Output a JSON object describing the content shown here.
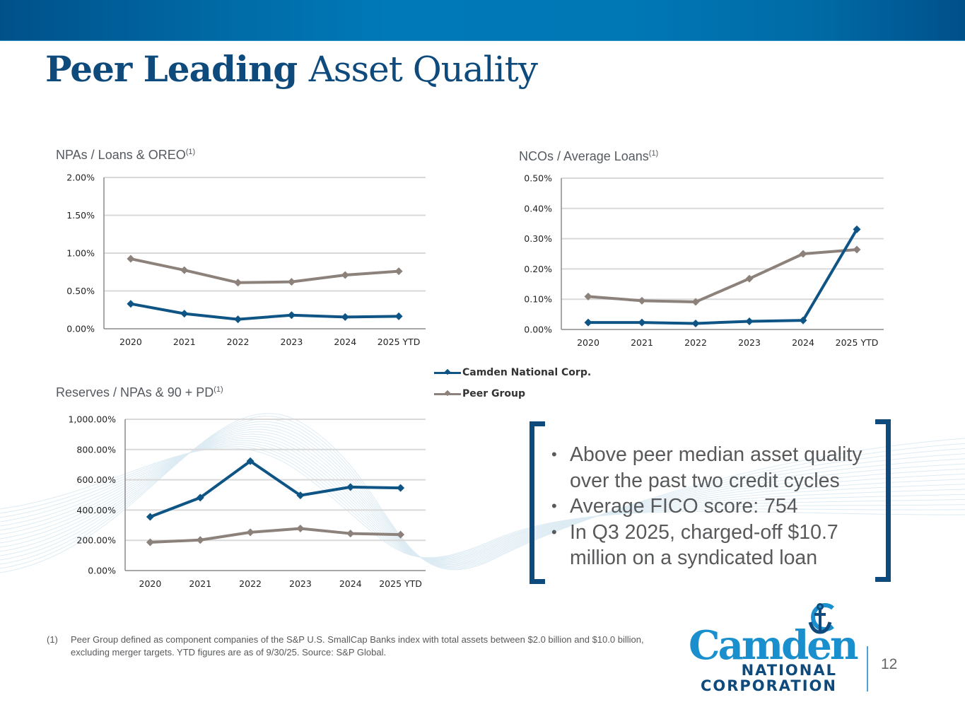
{
  "header": {
    "title_bold": "Peer Leading",
    "title_light": "Asset Quality"
  },
  "colors": {
    "camden": "#0e5485",
    "peer": "#8d827b",
    "brand_dark": "#0e4a7c",
    "brand_light": "#1a8fce",
    "gridline": "#d9d9d9",
    "axis": "#8c8c8c"
  },
  "legend": {
    "items": [
      {
        "label": "Camden National Corp.",
        "color_key": "camden"
      },
      {
        "label": "Peer Group",
        "color_key": "peer"
      }
    ]
  },
  "chart_data": [
    {
      "type": "line",
      "title": "NPAs / Loans & OREO",
      "title_superscript": "(1)",
      "xlabel": "",
      "ylabel": "",
      "categories": [
        "2020",
        "2021",
        "2022",
        "2023",
        "2024",
        "2025 YTD"
      ],
      "yticks": [
        "0.00%",
        "0.50%",
        "1.00%",
        "1.50%",
        "2.00%"
      ],
      "ylim": [
        0,
        2.0
      ],
      "ytick_step": 0.5,
      "grid": true,
      "series": [
        {
          "name": "Camden National Corp.",
          "color_key": "camden",
          "values": [
            0.33,
            0.2,
            0.125,
            0.18,
            0.155,
            0.165
          ]
        },
        {
          "name": "Peer Group",
          "color_key": "peer",
          "values": [
            0.925,
            0.775,
            0.61,
            0.62,
            0.71,
            0.76
          ]
        }
      ],
      "units": "%"
    },
    {
      "type": "line",
      "title": "NCOs / Average Loans",
      "title_superscript": "(1)",
      "xlabel": "",
      "ylabel": "",
      "categories": [
        "2020",
        "2021",
        "2022",
        "2023",
        "2024",
        "2025 YTD"
      ],
      "yticks": [
        "0.00%",
        "0.10%",
        "0.20%",
        "0.30%",
        "0.40%",
        "0.50%"
      ],
      "ylim": [
        0,
        0.5
      ],
      "ytick_step": 0.1,
      "grid": true,
      "series": [
        {
          "name": "Camden National Corp.",
          "color_key": "camden",
          "values": [
            0.023,
            0.023,
            0.02,
            0.027,
            0.03,
            0.331
          ]
        },
        {
          "name": "Peer Group",
          "color_key": "peer",
          "values": [
            0.109,
            0.095,
            0.091,
            0.168,
            0.25,
            0.264
          ]
        }
      ],
      "units": "%"
    },
    {
      "type": "line",
      "title": "Reserves / NPAs & 90 + PD",
      "title_superscript": "(1)",
      "xlabel": "",
      "ylabel": "",
      "categories": [
        "2020",
        "2021",
        "2022",
        "2023",
        "2024",
        "2025 YTD"
      ],
      "yticks": [
        "0.00%",
        "200.00%",
        "400.00%",
        "600.00%",
        "800.00%",
        "1,000.00%"
      ],
      "ylim": [
        0,
        1000
      ],
      "ytick_step": 200,
      "grid": true,
      "series": [
        {
          "name": "Camden National Corp.",
          "color_key": "camden",
          "values": [
            355,
            482,
            723,
            497,
            552,
            546
          ]
        },
        {
          "name": "Peer Group",
          "color_key": "peer",
          "values": [
            187,
            202,
            253,
            278,
            245,
            238
          ]
        }
      ],
      "units": "%"
    }
  ],
  "highlights": {
    "bullets": [
      "Above peer median asset quality over the past two credit cycles",
      "Average FICO score: 754",
      "In Q3 2025, charged-off $10.7 million on a syndicated loan"
    ]
  },
  "footnote": {
    "marker": "(1)",
    "text": "Peer Group defined as component companies of the S&P U.S. SmallCap Banks index with total assets between $2.0 billion and $10.0 billion, excluding merger targets. YTD figures are as of 9/30/25. Source: S&P Global."
  },
  "logo": {
    "word": "Camden",
    "line1": "NATIONAL",
    "line2": "CORPORATION"
  },
  "page": {
    "number": "12"
  }
}
